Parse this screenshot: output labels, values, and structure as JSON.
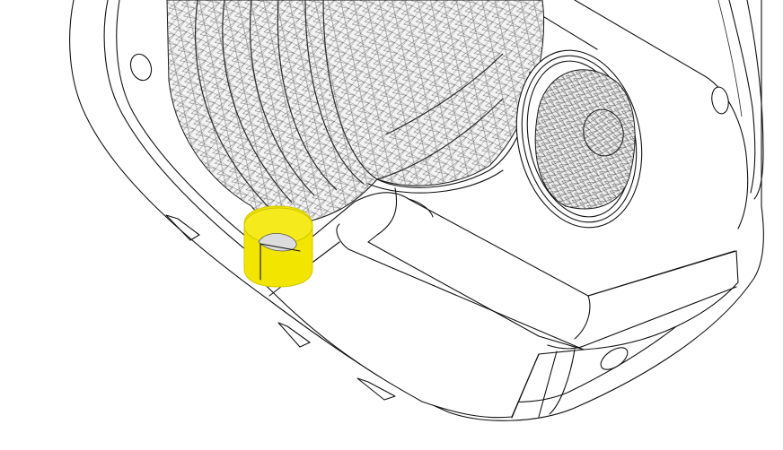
{
  "scene": {
    "background": "#ffffff",
    "line_color": "#111111",
    "mesh_color": "#3a3a3a",
    "highlight_color": "#f2e600"
  }
}
